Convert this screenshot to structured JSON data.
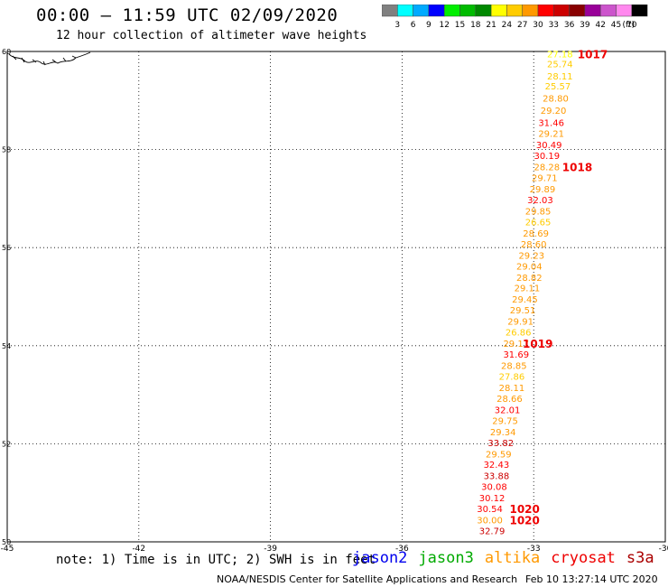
{
  "header": {
    "title": "00:00 – 11:59 UTC 02/09/2020",
    "subtitle": "12 hour collection of altimeter wave heights"
  },
  "colorbar": {
    "unit": "(ft)",
    "bins": [
      {
        "label": "3",
        "color": "#808080"
      },
      {
        "label": "6",
        "color": "#00ffff"
      },
      {
        "label": "9",
        "color": "#00aaff"
      },
      {
        "label": "12",
        "color": "#0000ff"
      },
      {
        "label": "15",
        "color": "#00ee00"
      },
      {
        "label": "18",
        "color": "#00bb00"
      },
      {
        "label": "21",
        "color": "#008800"
      },
      {
        "label": "24",
        "color": "#ffff00"
      },
      {
        "label": "27",
        "color": "#ffcc00"
      },
      {
        "label": "30",
        "color": "#ff9900"
      },
      {
        "label": "33",
        "color": "#ff0000"
      },
      {
        "label": "36",
        "color": "#cc0000"
      },
      {
        "label": "39",
        "color": "#880000"
      },
      {
        "label": "42",
        "color": "#990099"
      },
      {
        "label": "45",
        "color": "#cc55cc"
      },
      {
        "label": "70",
        "color": "#ff88ee"
      },
      {
        "label": "",
        "color": "#000000"
      }
    ]
  },
  "map": {
    "lon_range": [
      -45,
      -30
    ],
    "lat_range": [
      50,
      60
    ],
    "lon_ticks": [
      "-45",
      "-42",
      "-39",
      "-36",
      "-33",
      "-30"
    ],
    "lat_ticks": [
      "60",
      "58",
      "56",
      "54",
      "52",
      "50"
    ]
  },
  "chart_data": {
    "type": "scatter",
    "units": "ft",
    "points": [
      {
        "lon": -32.4,
        "lat": 59.95,
        "v": "27.18",
        "c": "#ffff00"
      },
      {
        "lon": -32.4,
        "lat": 59.75,
        "v": "25.74",
        "c": "#ffcc00"
      },
      {
        "lon": -32.4,
        "lat": 59.5,
        "v": "28.11",
        "c": "#ffcc00"
      },
      {
        "lon": -32.45,
        "lat": 59.3,
        "v": "25.57",
        "c": "#ffcc00"
      },
      {
        "lon": -32.5,
        "lat": 59.05,
        "v": "28.80",
        "c": "#ff9900"
      },
      {
        "lon": -32.55,
        "lat": 58.8,
        "v": "29.20",
        "c": "#ff9900"
      },
      {
        "lon": -32.6,
        "lat": 58.55,
        "v": "31.46",
        "c": "#ff0000"
      },
      {
        "lon": -32.6,
        "lat": 58.33,
        "v": "29.21",
        "c": "#ff9900"
      },
      {
        "lon": -32.65,
        "lat": 58.1,
        "v": "30.49",
        "c": "#ff0000"
      },
      {
        "lon": -32.7,
        "lat": 57.88,
        "v": "30.19",
        "c": "#ff0000"
      },
      {
        "lon": -32.7,
        "lat": 57.65,
        "v": "28.28",
        "c": "#ff9900"
      },
      {
        "lon": -32.75,
        "lat": 57.43,
        "v": "29.71",
        "c": "#ff9900"
      },
      {
        "lon": -32.8,
        "lat": 57.2,
        "v": "29.89",
        "c": "#ff9900"
      },
      {
        "lon": -32.85,
        "lat": 56.98,
        "v": "32.03",
        "c": "#ff0000"
      },
      {
        "lon": -32.9,
        "lat": 56.75,
        "v": "29.85",
        "c": "#ff9900"
      },
      {
        "lon": -32.9,
        "lat": 56.53,
        "v": "26.65",
        "c": "#ffcc00"
      },
      {
        "lon": -32.95,
        "lat": 56.3,
        "v": "28.69",
        "c": "#ff9900"
      },
      {
        "lon": -33.0,
        "lat": 56.08,
        "v": "28.60",
        "c": "#ff9900"
      },
      {
        "lon": -33.05,
        "lat": 55.85,
        "v": "29.23",
        "c": "#ff9900"
      },
      {
        "lon": -33.1,
        "lat": 55.63,
        "v": "29.04",
        "c": "#ff9900"
      },
      {
        "lon": -33.1,
        "lat": 55.4,
        "v": "28.82",
        "c": "#ff9900"
      },
      {
        "lon": -33.15,
        "lat": 55.18,
        "v": "29.11",
        "c": "#ff9900"
      },
      {
        "lon": -33.2,
        "lat": 54.95,
        "v": "29.45",
        "c": "#ff9900"
      },
      {
        "lon": -33.25,
        "lat": 54.73,
        "v": "29.51",
        "c": "#ff9900"
      },
      {
        "lon": -33.3,
        "lat": 54.5,
        "v": "29.91",
        "c": "#ff9900"
      },
      {
        "lon": -33.35,
        "lat": 54.28,
        "v": "26.86",
        "c": "#ffcc00"
      },
      {
        "lon": -33.4,
        "lat": 54.05,
        "v": "29.17",
        "c": "#ff9900"
      },
      {
        "lon": -33.4,
        "lat": 53.83,
        "v": "31.69",
        "c": "#ff0000"
      },
      {
        "lon": -33.45,
        "lat": 53.6,
        "v": "28.85",
        "c": "#ff9900"
      },
      {
        "lon": -33.5,
        "lat": 53.38,
        "v": "27.86",
        "c": "#ffcc00"
      },
      {
        "lon": -33.5,
        "lat": 53.15,
        "v": "28.11",
        "c": "#ff9900"
      },
      {
        "lon": -33.55,
        "lat": 52.93,
        "v": "28.66",
        "c": "#ff9900"
      },
      {
        "lon": -33.6,
        "lat": 52.7,
        "v": "32.01",
        "c": "#ff0000"
      },
      {
        "lon": -33.65,
        "lat": 52.48,
        "v": "29.75",
        "c": "#ff9900"
      },
      {
        "lon": -33.7,
        "lat": 52.25,
        "v": "29.34",
        "c": "#ff9900"
      },
      {
        "lon": -33.75,
        "lat": 52.03,
        "v": "33.82",
        "c": "#cc0000"
      },
      {
        "lon": -33.8,
        "lat": 51.8,
        "v": "29.59",
        "c": "#ff9900"
      },
      {
        "lon": -33.85,
        "lat": 51.58,
        "v": "32.43",
        "c": "#ff0000"
      },
      {
        "lon": -33.85,
        "lat": 51.35,
        "v": "33.88",
        "c": "#cc0000"
      },
      {
        "lon": -33.9,
        "lat": 51.13,
        "v": "30.08",
        "c": "#ff0000"
      },
      {
        "lon": -33.95,
        "lat": 50.9,
        "v": "30.12",
        "c": "#ff0000"
      },
      {
        "lon": -34.0,
        "lat": 50.68,
        "v": "30.54",
        "c": "#ff0000"
      },
      {
        "lon": -34.0,
        "lat": 50.45,
        "v": "30.00",
        "c": "#ff9900"
      },
      {
        "lon": -33.95,
        "lat": 50.23,
        "v": "32.79",
        "c": "#cc0000"
      }
    ],
    "pressure_labels": [
      {
        "lon": -32.0,
        "lat": 59.95,
        "v": "1017"
      },
      {
        "lon": -32.35,
        "lat": 57.65,
        "v": "1018"
      },
      {
        "lon": -33.25,
        "lat": 54.05,
        "v": "1019"
      },
      {
        "lon": -33.55,
        "lat": 50.68,
        "v": "1020"
      },
      {
        "lon": -33.55,
        "lat": 50.45,
        "v": "1020"
      }
    ]
  },
  "note": "note: 1) Time is in UTC; 2) SWH is in feet",
  "satellites": [
    {
      "name": "jason2",
      "color": "#0000ee"
    },
    {
      "name": "jason3",
      "color": "#00aa00"
    },
    {
      "name": "altika",
      "color": "#ff9900"
    },
    {
      "name": "cryosat",
      "color": "#ee0000"
    },
    {
      "name": "s3a",
      "color": "#aa0000"
    }
  ],
  "footer": {
    "credit": "NOAA/NESDIS Center for Satellite Applications and Research",
    "timestamp": "Feb 10 13:27:14 UTC 2020"
  }
}
